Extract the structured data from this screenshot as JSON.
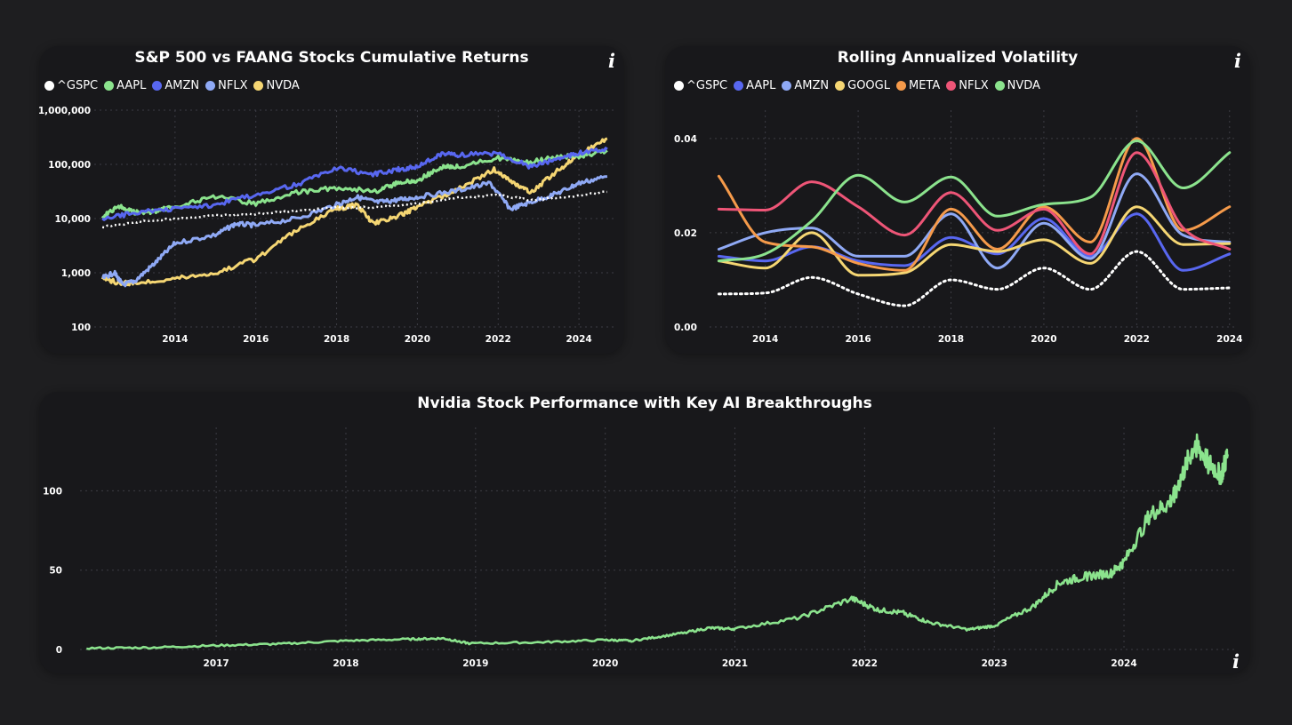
{
  "colors": {
    "gspc": "#ffffff",
    "aapl": "#8be38d",
    "amzn": "#5867f0",
    "nflx": "#8fa9f5",
    "nvda": "#f5d673",
    "googl": "#f5d673",
    "meta": "#f59a4a",
    "nflx_vol": "#ee5577",
    "nvda_vol": "#8be38d",
    "amzn_vol": "#8fa9f5",
    "aapl_vol": "#5867f0"
  },
  "returns_card": {
    "title": "S&P 500 vs FAANG Stocks Cumulative Returns",
    "info_icon": "info-icon",
    "legend": [
      {
        "label": "^GSPC",
        "color": "#ffffff"
      },
      {
        "label": "AAPL",
        "color": "#8be38d"
      },
      {
        "label": "AMZN",
        "color": "#5867f0"
      },
      {
        "label": "NFLX",
        "color": "#8fa9f5"
      },
      {
        "label": "NVDA",
        "color": "#f5d673"
      }
    ]
  },
  "volatility_card": {
    "title": "Rolling Annualized Volatility",
    "info_icon": "info-icon",
    "legend": [
      {
        "label": "^GSPC",
        "color": "#ffffff"
      },
      {
        "label": "AAPL",
        "color": "#5867f0"
      },
      {
        "label": "AMZN",
        "color": "#8fa9f5"
      },
      {
        "label": "GOOGL",
        "color": "#f5d673"
      },
      {
        "label": "META",
        "color": "#f59a4a"
      },
      {
        "label": "NFLX",
        "color": "#ee5577"
      },
      {
        "label": "NVDA",
        "color": "#8be38d"
      }
    ]
  },
  "nvda_card": {
    "title": "Nvidia Stock Performance with Key AI Breakthroughs",
    "info_icon": "info-icon"
  },
  "chart_data": [
    {
      "type": "line",
      "title": "S&P 500 vs FAANG Stocks Cumulative Returns",
      "yscale": "log",
      "ylim": [
        100,
        1000000
      ],
      "xlim": [
        2012.0,
        2024.9
      ],
      "x_ticks": [
        2014,
        2016,
        2018,
        2020,
        2022,
        2024
      ],
      "y_ticks": [
        {
          "value": 100,
          "label": "100"
        },
        {
          "value": 1000,
          "label": "1,000"
        },
        {
          "value": 10000,
          "label": "10,000"
        },
        {
          "value": 100000,
          "label": "100,000"
        },
        {
          "value": 1000000,
          "label": "1,000,000"
        }
      ],
      "grid": true,
      "legend_position": "top-left",
      "series": [
        {
          "name": "^GSPC",
          "color": "#ffffff",
          "dashed": true,
          "x": [
            2012.2,
            2013,
            2014,
            2015,
            2016,
            2017,
            2018,
            2019,
            2020,
            2021,
            2022,
            2022.8,
            2023.5,
            2024.7
          ],
          "values": [
            7000,
            8500,
            10000,
            11500,
            12000,
            14000,
            16000,
            16000,
            19000,
            24000,
            27000,
            22000,
            24000,
            31000
          ]
        },
        {
          "name": "AAPL",
          "color": "#8be38d",
          "x": [
            2012.2,
            2012.6,
            2013,
            2013.5,
            2014,
            2015,
            2016,
            2017,
            2018,
            2019,
            2019.5,
            2020,
            2020.6,
            2021,
            2022,
            2022.8,
            2023.5,
            2024,
            2024.7
          ],
          "values": [
            11000,
            17000,
            13000,
            13500,
            17000,
            25000,
            19000,
            30000,
            37000,
            32000,
            45000,
            50000,
            90000,
            90000,
            130000,
            110000,
            140000,
            140000,
            180000
          ]
        },
        {
          "name": "AMZN",
          "color": "#5867f0",
          "x": [
            2012.2,
            2013,
            2014,
            2015,
            2016,
            2017,
            2018,
            2018.9,
            2019.5,
            2020,
            2020.6,
            2021,
            2022,
            2022.8,
            2023.5,
            2024,
            2024.7
          ],
          "values": [
            9500,
            13000,
            15000,
            18000,
            28000,
            42000,
            85000,
            65000,
            80000,
            90000,
            160000,
            150000,
            160000,
            90000,
            130000,
            160000,
            190000
          ]
        },
        {
          "name": "NFLX",
          "color": "#8fa9f5",
          "x": [
            2012.2,
            2012.5,
            2012.7,
            2013,
            2013.5,
            2014,
            2015,
            2015.5,
            2016,
            2017,
            2018,
            2018.5,
            2019,
            2019.5,
            2020,
            2021,
            2021.8,
            2022.3,
            2022.8,
            2023.5,
            2024,
            2024.7
          ],
          "values": [
            800,
            1000,
            600,
            700,
            1500,
            3500,
            5000,
            8000,
            7500,
            10000,
            18000,
            25000,
            20000,
            22000,
            25000,
            33000,
            45000,
            15000,
            20000,
            30000,
            45000,
            60000
          ]
        },
        {
          "name": "NVDA",
          "color": "#f5d673",
          "x": [
            2012.2,
            2012.6,
            2013,
            2014,
            2015,
            2016,
            2017,
            2018,
            2018.5,
            2018.9,
            2019.5,
            2020,
            2021,
            2021.9,
            2022.4,
            2022.8,
            2023.5,
            2024,
            2024.7
          ],
          "values": [
            800,
            650,
            650,
            800,
            1000,
            1800,
            6000,
            15000,
            18000,
            8000,
            11000,
            16000,
            35000,
            80000,
            45000,
            30000,
            80000,
            150000,
            300000
          ]
        }
      ]
    },
    {
      "type": "line",
      "title": "Rolling Annualized Volatility",
      "ylim": [
        0.0,
        0.046
      ],
      "xlim": [
        2012.8,
        2024.1
      ],
      "x_ticks": [
        2014,
        2016,
        2018,
        2020,
        2022,
        2024
      ],
      "y_ticks": [
        {
          "value": 0.0,
          "label": "0.00"
        },
        {
          "value": 0.02,
          "label": "0.02"
        },
        {
          "value": 0.04,
          "label": "0.04"
        }
      ],
      "grid": true,
      "legend_position": "top-left",
      "x": [
        2013,
        2014,
        2015,
        2016,
        2017,
        2018,
        2019,
        2020,
        2021,
        2022,
        2023,
        2024
      ],
      "series": [
        {
          "name": "^GSPC",
          "color": "#ffffff",
          "dashed": true,
          "values": [
            0.007,
            0.0072,
            0.0105,
            0.007,
            0.0045,
            0.01,
            0.008,
            0.0125,
            0.008,
            0.016,
            0.008,
            0.0083
          ]
        },
        {
          "name": "AAPL",
          "color": "#5867f0",
          "values": [
            0.015,
            0.014,
            0.017,
            0.014,
            0.013,
            0.019,
            0.0155,
            0.023,
            0.015,
            0.024,
            0.012,
            0.0155
          ]
        },
        {
          "name": "AMZN",
          "color": "#8fa9f5",
          "values": [
            0.0165,
            0.02,
            0.021,
            0.015,
            0.015,
            0.024,
            0.0125,
            0.022,
            0.0145,
            0.0325,
            0.0195,
            0.018
          ]
        },
        {
          "name": "GOOGL",
          "color": "#f5d673",
          "values": [
            0.014,
            0.0125,
            0.02,
            0.011,
            0.0115,
            0.0175,
            0.016,
            0.0185,
            0.0135,
            0.0255,
            0.0175,
            0.0177
          ]
        },
        {
          "name": "META",
          "color": "#f59a4a",
          "values": [
            0.032,
            0.018,
            0.017,
            0.0135,
            0.012,
            0.025,
            0.0165,
            0.0255,
            0.018,
            0.04,
            0.0205,
            0.0255
          ]
        },
        {
          "name": "NFLX",
          "color": "#ee5577",
          "values": [
            0.025,
            0.0248,
            0.0308,
            0.0255,
            0.0195,
            0.0285,
            0.0205,
            0.025,
            0.0155,
            0.037,
            0.021,
            0.0165
          ]
        },
        {
          "name": "NVDA",
          "color": "#8be38d",
          "values": [
            0.014,
            0.0155,
            0.0225,
            0.0322,
            0.0265,
            0.0318,
            0.0235,
            0.026,
            0.0275,
            0.0395,
            0.0295,
            0.037
          ]
        }
      ]
    },
    {
      "type": "line",
      "title": "Nvidia Stock Performance with Key AI Breakthroughs",
      "ylim": [
        0,
        140
      ],
      "xlim": [
        2015.95,
        2024.85
      ],
      "x_ticks": [
        2017,
        2018,
        2019,
        2020,
        2021,
        2022,
        2023,
        2024
      ],
      "y_ticks": [
        {
          "value": 0,
          "label": "0"
        },
        {
          "value": 50,
          "label": "50"
        },
        {
          "value": 100,
          "label": "100"
        }
      ],
      "grid": true,
      "series": [
        {
          "name": "NVDA",
          "color": "#8be38d",
          "x": [
            2016.0,
            2016.5,
            2017.0,
            2017.5,
            2018.0,
            2018.5,
            2018.75,
            2018.95,
            2019.5,
            2020.0,
            2020.2,
            2020.5,
            2020.8,
            2021.0,
            2021.5,
            2021.9,
            2022.1,
            2022.3,
            2022.5,
            2022.8,
            2023.0,
            2023.3,
            2023.5,
            2023.7,
            2023.9,
            2024.0,
            2024.2,
            2024.35,
            2024.45,
            2024.55,
            2024.65,
            2024.75,
            2024.8
          ],
          "values": [
            0.8,
            1.2,
            2.5,
            3.5,
            5.5,
            6.5,
            7.0,
            3.8,
            4.5,
            6.0,
            5.5,
            9.0,
            13.5,
            13.0,
            20.0,
            32.0,
            25.0,
            23.0,
            17.0,
            12.5,
            15.0,
            27.0,
            42.0,
            46.0,
            48.0,
            55.0,
            85.0,
            92.0,
            110.0,
            130.0,
            118.0,
            110.0,
            123.0
          ]
        }
      ]
    }
  ]
}
